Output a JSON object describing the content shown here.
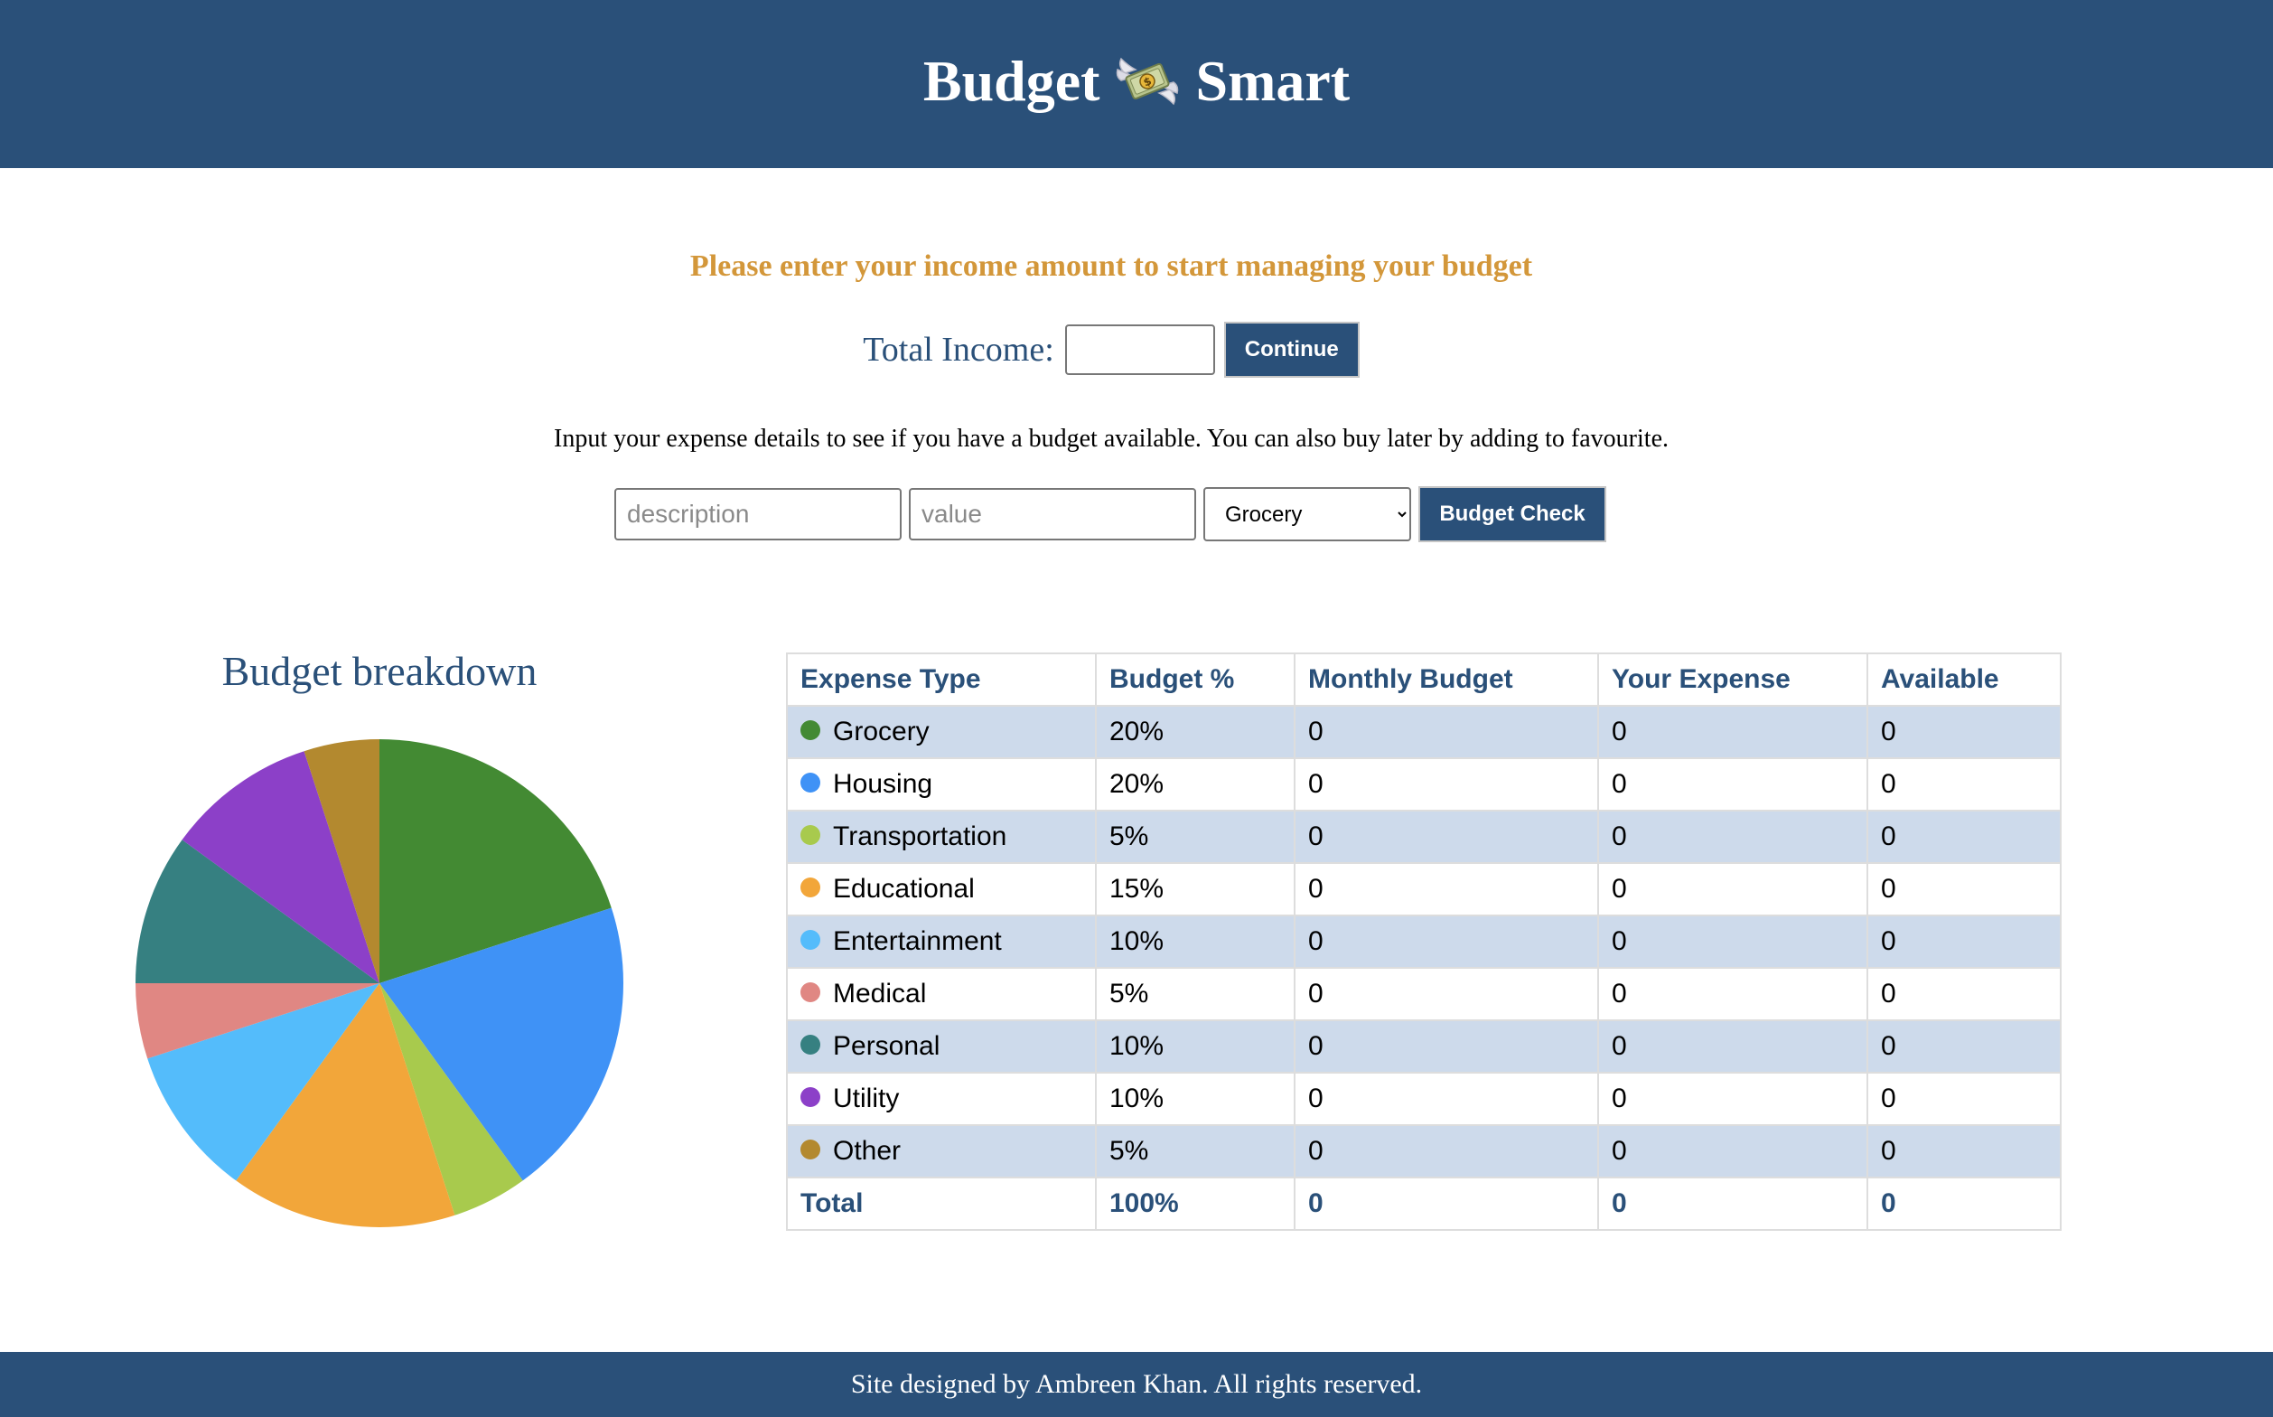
{
  "header": {
    "title_left": "Budget",
    "title_right": "Smart",
    "icon": "money-with-wings-icon"
  },
  "income": {
    "prompt": "Please enter your income amount to start managing your budget",
    "label": "Total Income:",
    "value": "",
    "continue_label": "Continue"
  },
  "expense": {
    "instructions": "Input your expense details to see if you have a budget available. You can also buy later by adding to favourite.",
    "description_placeholder": "description",
    "value_placeholder": "value",
    "selected_category": "Grocery",
    "button_label": "Budget Check"
  },
  "chart_data": {
    "type": "pie",
    "title": "Budget breakdown",
    "categories": [
      "Grocery",
      "Housing",
      "Transportation",
      "Educational",
      "Entertainment",
      "Medical",
      "Personal",
      "Utility",
      "Other"
    ],
    "values": [
      20,
      20,
      5,
      15,
      10,
      5,
      10,
      10,
      5
    ],
    "colors": [
      "#438a33",
      "#3f92f6",
      "#a8ca4d",
      "#f2a63a",
      "#54bcfb",
      "#e08783",
      "#368081",
      "#8c40c8",
      "#b3892f"
    ],
    "start_angle_deg": 90,
    "direction": "clockwise",
    "legend": "none"
  },
  "table": {
    "headers": [
      "Expense Type",
      "Budget %",
      "Monthly Budget",
      "Your Expense",
      "Available"
    ],
    "rows": [
      {
        "type": "Grocery",
        "percent": "20%",
        "monthly": "0",
        "expense": "0",
        "available": "0",
        "color": "#438a33"
      },
      {
        "type": "Housing",
        "percent": "20%",
        "monthly": "0",
        "expense": "0",
        "available": "0",
        "color": "#3f92f6"
      },
      {
        "type": "Transportation",
        "percent": "5%",
        "monthly": "0",
        "expense": "0",
        "available": "0",
        "color": "#a8ca4d"
      },
      {
        "type": "Educational",
        "percent": "15%",
        "monthly": "0",
        "expense": "0",
        "available": "0",
        "color": "#f2a63a"
      },
      {
        "type": "Entertainment",
        "percent": "10%",
        "monthly": "0",
        "expense": "0",
        "available": "0",
        "color": "#54bcfb"
      },
      {
        "type": "Medical",
        "percent": "5%",
        "monthly": "0",
        "expense": "0",
        "available": "0",
        "color": "#e08783"
      },
      {
        "type": "Personal",
        "percent": "10%",
        "monthly": "0",
        "expense": "0",
        "available": "0",
        "color": "#368081"
      },
      {
        "type": "Utility",
        "percent": "10%",
        "monthly": "0",
        "expense": "0",
        "available": "0",
        "color": "#8c40c8"
      },
      {
        "type": "Other",
        "percent": "5%",
        "monthly": "0",
        "expense": "0",
        "available": "0",
        "color": "#b3892f"
      }
    ],
    "total": {
      "label": "Total",
      "percent": "100%",
      "monthly": "0",
      "expense": "0",
      "available": "0"
    }
  },
  "footer": {
    "text": "Site designed by Ambreen Khan. All rights reserved."
  }
}
